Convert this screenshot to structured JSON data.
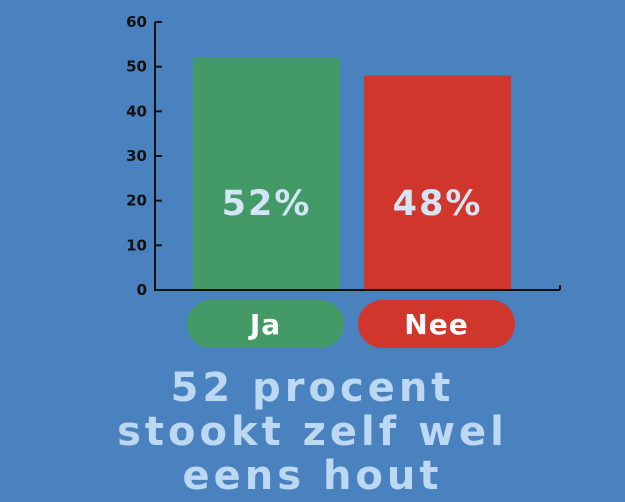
{
  "chart_data": {
    "type": "bar",
    "categories": [
      "Ja",
      "Nee"
    ],
    "values": [
      52,
      48
    ],
    "data_labels": [
      "52%",
      "48%"
    ],
    "ylim": [
      0,
      60
    ],
    "yticks": [
      "0",
      "10",
      "20",
      "30",
      "40",
      "50",
      "60"
    ],
    "colors": [
      "#439a66",
      "#d0362b"
    ],
    "grid": false,
    "legend": "none"
  },
  "caption": {
    "lines": [
      "52 procent",
      "stookt zelf wel",
      "eens hout"
    ]
  },
  "colors": {
    "background": "#4a82c0",
    "axis": "#111111",
    "data_label": "#d4e6f6",
    "caption": "#bcd8f2"
  }
}
